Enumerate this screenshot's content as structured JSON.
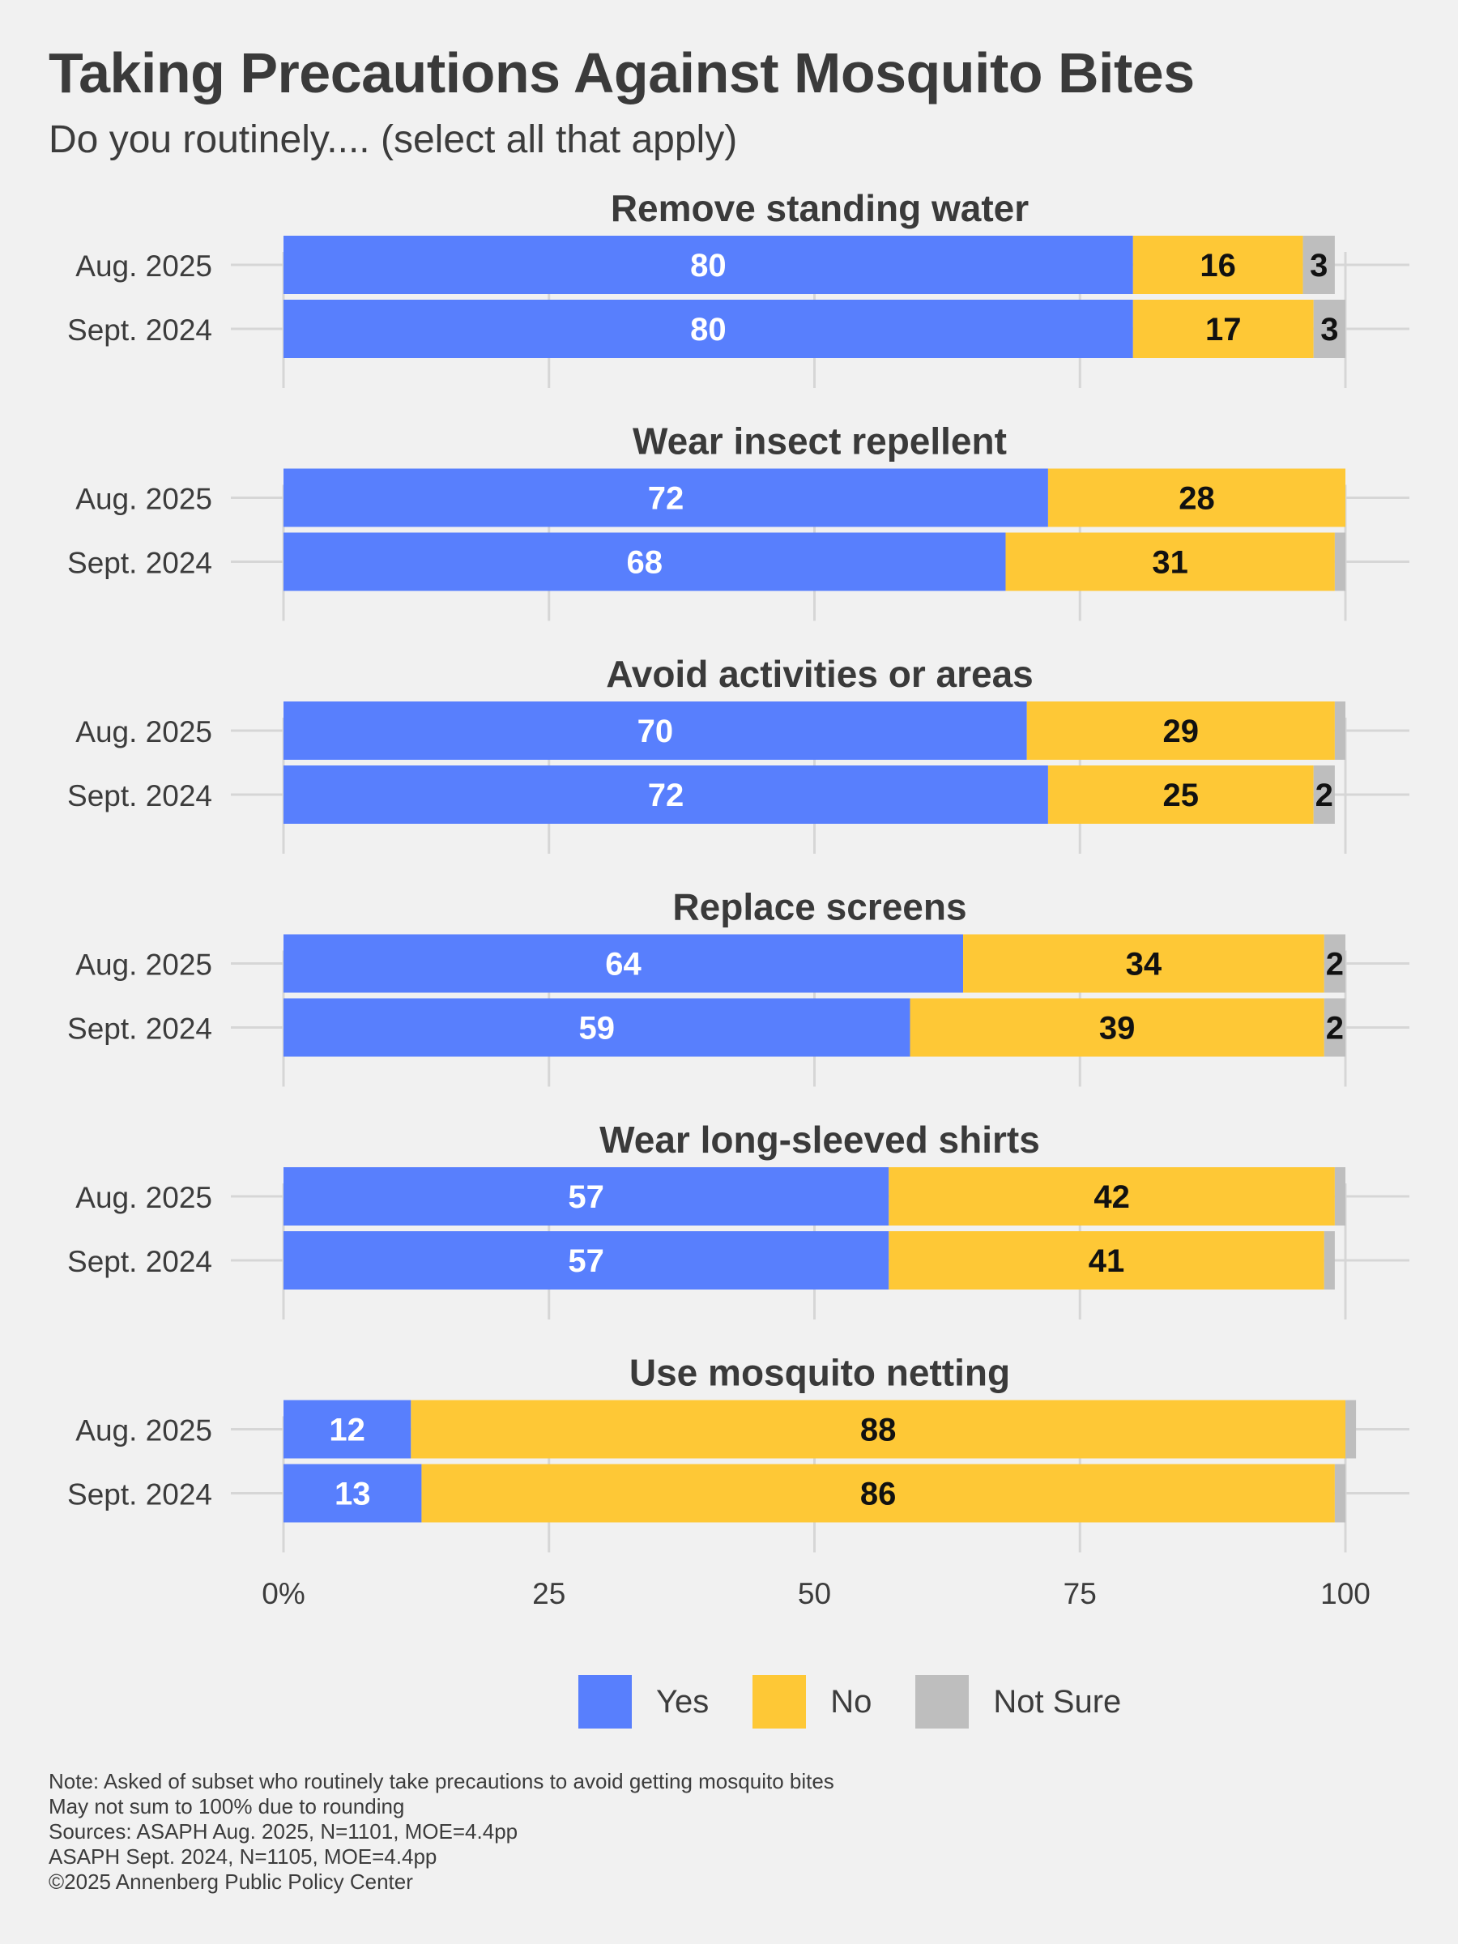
{
  "title": "Taking Precautions Against Mosquito Bites",
  "subtitle": "Do you routinely.... (select all that apply)",
  "legend": {
    "items": [
      {
        "label": "Yes",
        "color": "#587ffd"
      },
      {
        "label": "No",
        "color": "#fec836"
      },
      {
        "label": "Not Sure",
        "color": "#bebebe"
      }
    ]
  },
  "notes": {
    "line1": "Note: Asked of subset who routinely take precautions to avoid getting mosquito bites",
    "line2": "May not sum to 100% due to rounding",
    "line3": "Sources: ASAPH Aug. 2025, N=1101, MOE=4.4pp",
    "line4": "ASAPH Sept. 2024, N=1105, MOE=4.4pp",
    "line5": "©2025 Annenberg Public Policy Center"
  },
  "chart_data": {
    "type": "bar",
    "orientation": "horizontal",
    "stacked": true,
    "xlim": [
      0,
      100
    ],
    "x_ticks": [
      "0%",
      "25",
      "50",
      "75",
      "100"
    ],
    "x_tick_values": [
      0,
      25,
      50,
      75,
      100
    ],
    "grid": true,
    "legend_position": "bottom",
    "series_names": [
      "Yes",
      "No",
      "Not Sure"
    ],
    "colors": {
      "Yes": "#587ffd",
      "No": "#fec836",
      "Not Sure": "#bebebe"
    },
    "panels": [
      {
        "title": "Remove standing water",
        "rows": [
          {
            "label": "Aug. 2025",
            "yes": 80,
            "no": 16,
            "not_sure": 3
          },
          {
            "label": "Sept. 2024",
            "yes": 80,
            "no": 17,
            "not_sure": 3
          }
        ]
      },
      {
        "title": "Wear insect repellent",
        "rows": [
          {
            "label": "Aug. 2025",
            "yes": 72,
            "no": 28,
            "not_sure": 0
          },
          {
            "label": "Sept. 2024",
            "yes": 68,
            "no": 31,
            "not_sure": 1
          }
        ]
      },
      {
        "title": "Avoid activities or areas",
        "rows": [
          {
            "label": "Aug. 2025",
            "yes": 70,
            "no": 29,
            "not_sure": 1
          },
          {
            "label": "Sept. 2024",
            "yes": 72,
            "no": 25,
            "not_sure": 2
          }
        ]
      },
      {
        "title": "Replace screens",
        "rows": [
          {
            "label": "Aug. 2025",
            "yes": 64,
            "no": 34,
            "not_sure": 2
          },
          {
            "label": "Sept. 2024",
            "yes": 59,
            "no": 39,
            "not_sure": 2
          }
        ]
      },
      {
        "title": "Wear long-sleeved shirts",
        "rows": [
          {
            "label": "Aug. 2025",
            "yes": 57,
            "no": 42,
            "not_sure": 1
          },
          {
            "label": "Sept. 2024",
            "yes": 57,
            "no": 41,
            "not_sure": 1
          }
        ]
      },
      {
        "title": "Use mosquito netting",
        "rows": [
          {
            "label": "Aug. 2025",
            "yes": 12,
            "no": 88,
            "not_sure": 1
          },
          {
            "label": "Sept. 2024",
            "yes": 13,
            "no": 86,
            "not_sure": 1
          }
        ]
      }
    ]
  }
}
